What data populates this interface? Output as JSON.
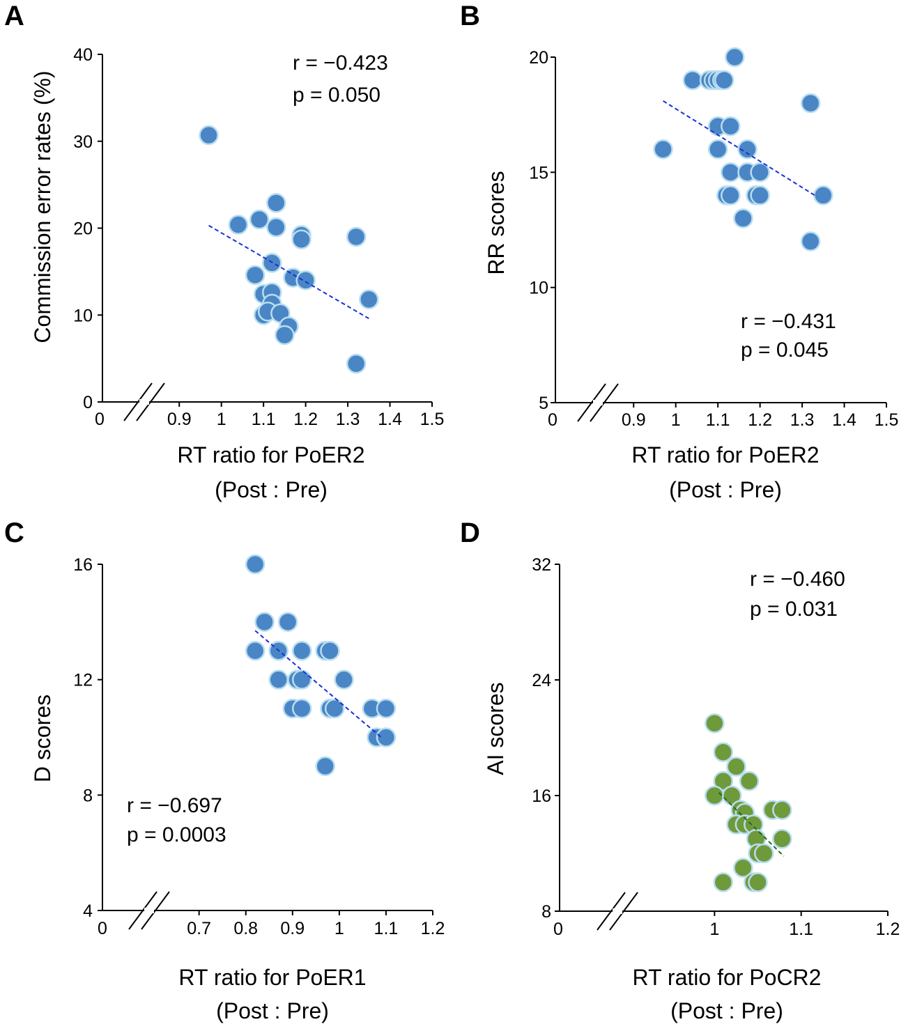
{
  "chart_data": [
    {
      "panel": "A",
      "type": "scatter",
      "xlabel": "RT ratio for PoER2",
      "xlabel2": "(Post : Pre)",
      "ylabel": "Commission error rates (%)",
      "x_ticks": [
        "0",
        "0.9",
        "1",
        "1.1",
        "1.2",
        "1.3",
        "1.4",
        "1.5"
      ],
      "y_ticks": [
        "0",
        "10",
        "20",
        "30",
        "40"
      ],
      "xlim": [
        0.85,
        1.5
      ],
      "ylim": [
        0,
        40
      ],
      "axis_break": true,
      "stat_r": "r  = −0.423",
      "stat_p": "p =    0.050",
      "point_color": "#4A86C5",
      "line_color": "#1A2FD6",
      "trend": [
        [
          0.97,
          20.3
        ],
        [
          1.35,
          9.6
        ]
      ],
      "points": [
        [
          0.97,
          30.7
        ],
        [
          1.04,
          20.4
        ],
        [
          1.09,
          21.0
        ],
        [
          1.12,
          16.0
        ],
        [
          1.13,
          22.9
        ],
        [
          1.13,
          20.1
        ],
        [
          1.08,
          14.6
        ],
        [
          1.1,
          12.4
        ],
        [
          1.12,
          12.6
        ],
        [
          1.12,
          11.3
        ],
        [
          1.1,
          10.0
        ],
        [
          1.11,
          10.4
        ],
        [
          1.14,
          10.2
        ],
        [
          1.16,
          8.7
        ],
        [
          1.15,
          7.7
        ],
        [
          1.17,
          14.3
        ],
        [
          1.19,
          19.2
        ],
        [
          1.19,
          18.7
        ],
        [
          1.2,
          14.0
        ],
        [
          1.32,
          19.0
        ],
        [
          1.35,
          11.8
        ],
        [
          1.32,
          4.4
        ]
      ]
    },
    {
      "panel": "B",
      "type": "scatter",
      "xlabel": "RT ratio for PoER2",
      "xlabel2": "(Post : Pre)",
      "ylabel": "RR scores",
      "x_ticks": [
        "0",
        "0.9",
        "1",
        "1.1",
        "1.2",
        "1.3",
        "1.4",
        "1.5"
      ],
      "y_ticks": [
        "5",
        "10",
        "15",
        "20"
      ],
      "xlim": [
        0.85,
        1.5
      ],
      "ylim": [
        5,
        20
      ],
      "axis_break": true,
      "stat_r": "r  = −0.431",
      "stat_p": "p =    0.045",
      "point_color": "#4A86C5",
      "line_color": "#1A2FD6",
      "trend": [
        [
          0.97,
          18.1
        ],
        [
          1.33,
          14.0
        ]
      ],
      "points": [
        [
          0.97,
          16
        ],
        [
          1.04,
          19
        ],
        [
          1.08,
          19
        ],
        [
          1.09,
          19
        ],
        [
          1.1,
          19
        ],
        [
          1.11,
          19
        ],
        [
          1.115,
          19
        ],
        [
          1.14,
          20
        ],
        [
          1.1,
          17
        ],
        [
          1.13,
          17
        ],
        [
          1.1,
          16
        ],
        [
          1.17,
          16
        ],
        [
          1.13,
          15
        ],
        [
          1.17,
          15
        ],
        [
          1.2,
          15
        ],
        [
          1.12,
          14
        ],
        [
          1.13,
          14
        ],
        [
          1.19,
          14
        ],
        [
          1.2,
          14
        ],
        [
          1.16,
          13
        ],
        [
          1.32,
          18
        ],
        [
          1.35,
          14
        ],
        [
          1.32,
          12
        ]
      ]
    },
    {
      "panel": "C",
      "type": "scatter",
      "xlabel": "RT ratio for PoER1",
      "xlabel2": "(Post : Pre)",
      "ylabel": "D scores",
      "x_ticks": [
        "0",
        "0.7",
        "0.8",
        "0.9",
        "1",
        "1.1",
        "1.2"
      ],
      "y_ticks": [
        "4",
        "8",
        "12",
        "16"
      ],
      "xlim": [
        0.62,
        1.2
      ],
      "ylim": [
        4,
        16
      ],
      "axis_break": true,
      "stat_r": "r  = −0.697",
      "stat_p": "p =    0.0003",
      "point_color": "#4A86C5",
      "line_color": "#1A2FD6",
      "trend": [
        [
          0.82,
          13.7
        ],
        [
          1.09,
          10.0
        ]
      ],
      "points": [
        [
          0.82,
          16
        ],
        [
          0.84,
          14
        ],
        [
          0.89,
          14
        ],
        [
          0.82,
          13
        ],
        [
          0.87,
          13
        ],
        [
          0.92,
          13
        ],
        [
          0.97,
          13
        ],
        [
          0.98,
          13
        ],
        [
          0.87,
          12
        ],
        [
          0.91,
          12
        ],
        [
          0.92,
          12
        ],
        [
          1.01,
          12
        ],
        [
          0.9,
          11
        ],
        [
          0.92,
          11
        ],
        [
          0.98,
          11
        ],
        [
          0.99,
          11
        ],
        [
          1.07,
          11
        ],
        [
          1.1,
          11
        ],
        [
          1.08,
          10
        ],
        [
          1.1,
          10
        ],
        [
          0.97,
          9
        ]
      ]
    },
    {
      "panel": "D",
      "type": "scatter",
      "xlabel": "RT ratio for PoCR2",
      "xlabel2": "(Post : Pre)",
      "ylabel": "AI scores",
      "x_ticks": [
        "0",
        "1",
        "1.1",
        "1.2"
      ],
      "y_ticks": [
        "8",
        "16",
        "24",
        "32"
      ],
      "xlim": [
        0.9,
        1.2
      ],
      "ylim": [
        8,
        32
      ],
      "axis_break": true,
      "stat_r": "r  = −0.460",
      "stat_p": "p =    0.031",
      "point_color": "#6F9A3B",
      "line_color": "#1E6B22",
      "trend": [
        [
          1.005,
          16.2
        ],
        [
          1.08,
          11.8
        ]
      ],
      "points": [
        [
          1.0,
          21
        ],
        [
          1.01,
          19
        ],
        [
          1.025,
          18
        ],
        [
          1.04,
          17
        ],
        [
          1.01,
          17
        ],
        [
          1.0,
          16
        ],
        [
          1.02,
          16
        ],
        [
          1.03,
          15
        ],
        [
          1.035,
          14.8
        ],
        [
          1.067,
          15
        ],
        [
          1.078,
          15
        ],
        [
          1.025,
          14
        ],
        [
          1.035,
          14
        ],
        [
          1.045,
          14
        ],
        [
          1.048,
          13
        ],
        [
          1.078,
          13
        ],
        [
          1.05,
          12
        ],
        [
          1.057,
          12
        ],
        [
          1.033,
          11
        ],
        [
          1.01,
          10
        ],
        [
          1.045,
          10
        ],
        [
          1.05,
          10
        ]
      ]
    }
  ]
}
